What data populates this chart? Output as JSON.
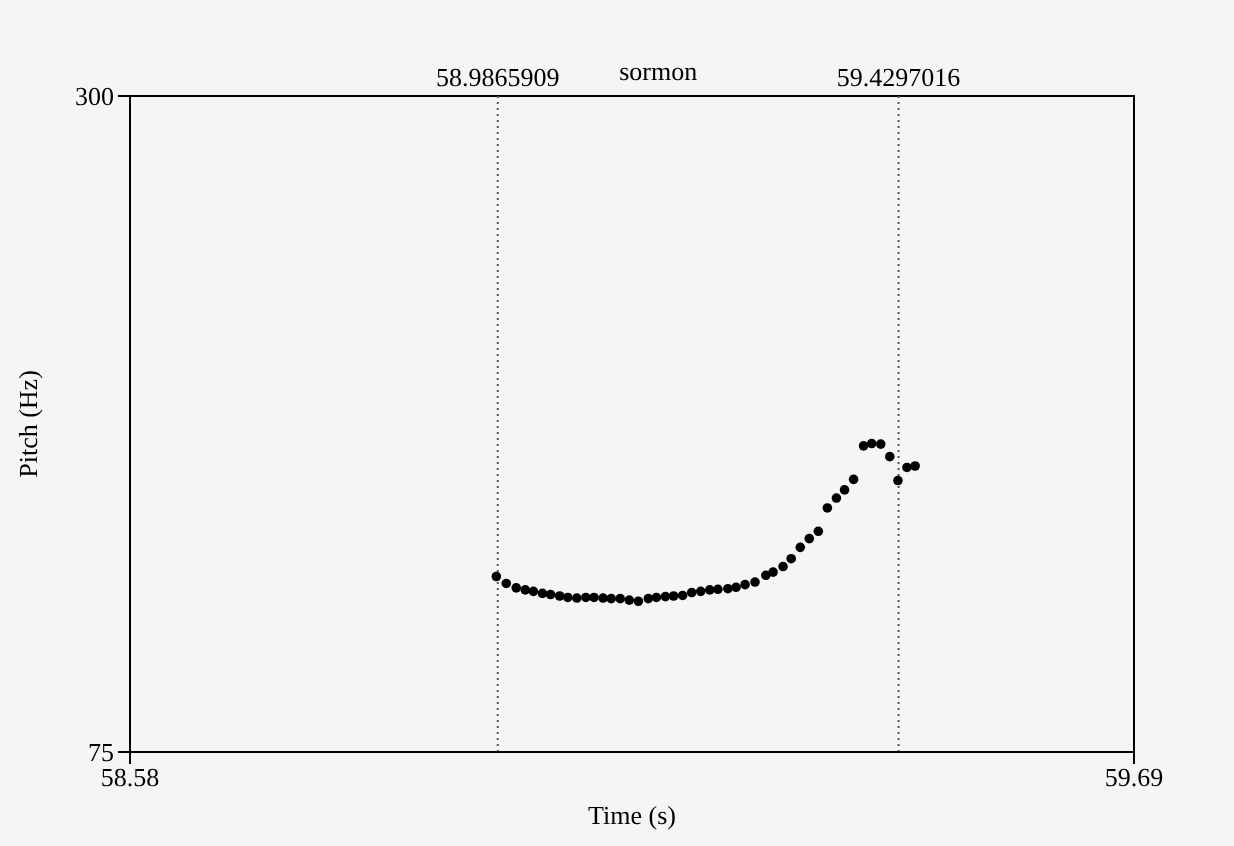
{
  "chart_data": {
    "type": "scatter",
    "xlabel": "Time (s)",
    "ylabel": "Pitch (Hz)",
    "annotations": [
      "sormon"
    ],
    "xlim": [
      58.58,
      59.69
    ],
    "xticks": [
      58.58,
      59.69
    ],
    "ylim": [
      75,
      300
    ],
    "yticks": [
      75,
      300
    ],
    "grid": false,
    "legend": false,
    "marker": "circle",
    "ref_lines": [
      {
        "axis": "x",
        "value": 58.9865909,
        "label": "58.9865909",
        "color": "#555555",
        "line_style": "dotted"
      },
      {
        "axis": "x",
        "value": 59.4297016,
        "label": "59.4297016",
        "color": "#555555",
        "line_style": "dotted"
      }
    ],
    "series": [
      {
        "color": "#000000",
        "x": [
          58.985,
          58.996,
          59.007,
          59.017,
          59.026,
          59.036,
          59.045,
          59.055,
          59.064,
          59.074,
          59.084,
          59.093,
          59.103,
          59.112,
          59.122,
          59.132,
          59.142,
          59.153,
          59.162,
          59.172,
          59.181,
          59.191,
          59.201,
          59.211,
          59.221,
          59.23,
          59.241,
          59.25,
          59.26,
          59.271,
          59.283,
          59.291,
          59.302,
          59.311,
          59.321,
          59.331,
          59.341,
          59.351,
          59.361,
          59.37,
          59.38,
          59.391,
          59.4,
          59.41,
          59.42,
          59.429,
          59.439,
          59.448
        ],
        "values": [
          135.2,
          132.8,
          131.3,
          130.6,
          130.1,
          129.4,
          129.0,
          128.5,
          128.0,
          127.8,
          128.0,
          128.0,
          127.8,
          127.6,
          127.6,
          127.1,
          126.7,
          127.6,
          128.0,
          128.3,
          128.5,
          128.7,
          129.7,
          130.1,
          130.6,
          130.8,
          131.0,
          131.5,
          132.4,
          133.3,
          135.6,
          136.7,
          138.6,
          141.3,
          145.2,
          148.2,
          150.7,
          158.7,
          162.1,
          164.9,
          168.5,
          180,
          180.8,
          180.6,
          176.3,
          168.1,
          172.6,
          173.1
        ]
      }
    ]
  }
}
